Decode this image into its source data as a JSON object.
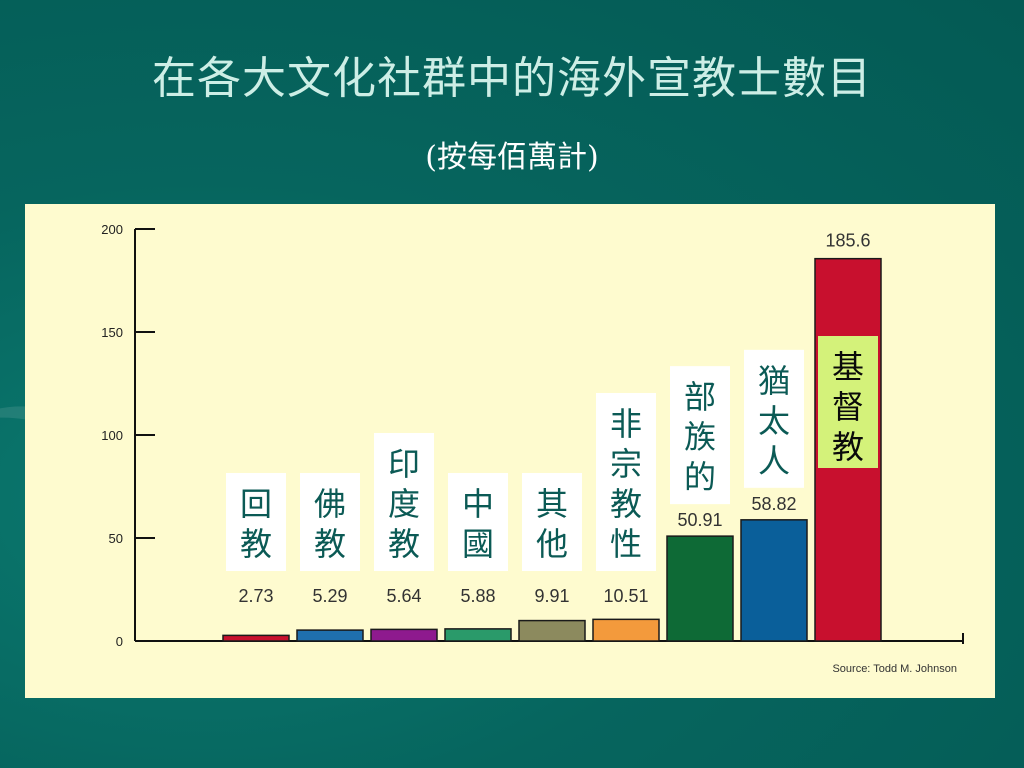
{
  "slide": {
    "title": "在各大文化社群中的海外宣教士數目",
    "subtitle": "(按每佰萬計)"
  },
  "chart_data": {
    "type": "bar",
    "categories": [
      "回教",
      "佛教",
      "印度教",
      "中國",
      "其他",
      "非宗教性",
      "部族的",
      "猶太人",
      "基督教"
    ],
    "values": [
      2.73,
      5.29,
      5.64,
      5.88,
      9.91,
      10.51,
      50.91,
      58.82,
      185.6
    ],
    "value_labels": [
      "2.73",
      "5.29",
      "5.64",
      "5.88",
      "9.91",
      "10.51",
      "50.91",
      "58.82",
      "185.6"
    ],
    "colors": [
      "#c8102e",
      "#1f6fae",
      "#8e1a8e",
      "#2a9a6a",
      "#8c8a5e",
      "#f39a3c",
      "#0e6a36",
      "#0a5f9a",
      "#c8102e"
    ],
    "highlight_index": 8,
    "label_box_color": "#ffffff",
    "highlight_box_color": "#d4f27a",
    "label_text_color": "#0b5a55",
    "ylim": [
      0,
      200
    ],
    "yticks": [
      0,
      50,
      100,
      150,
      200
    ],
    "xlabel": "",
    "ylabel": "",
    "grid": false,
    "source": "Source: Todd M. Johnson"
  }
}
